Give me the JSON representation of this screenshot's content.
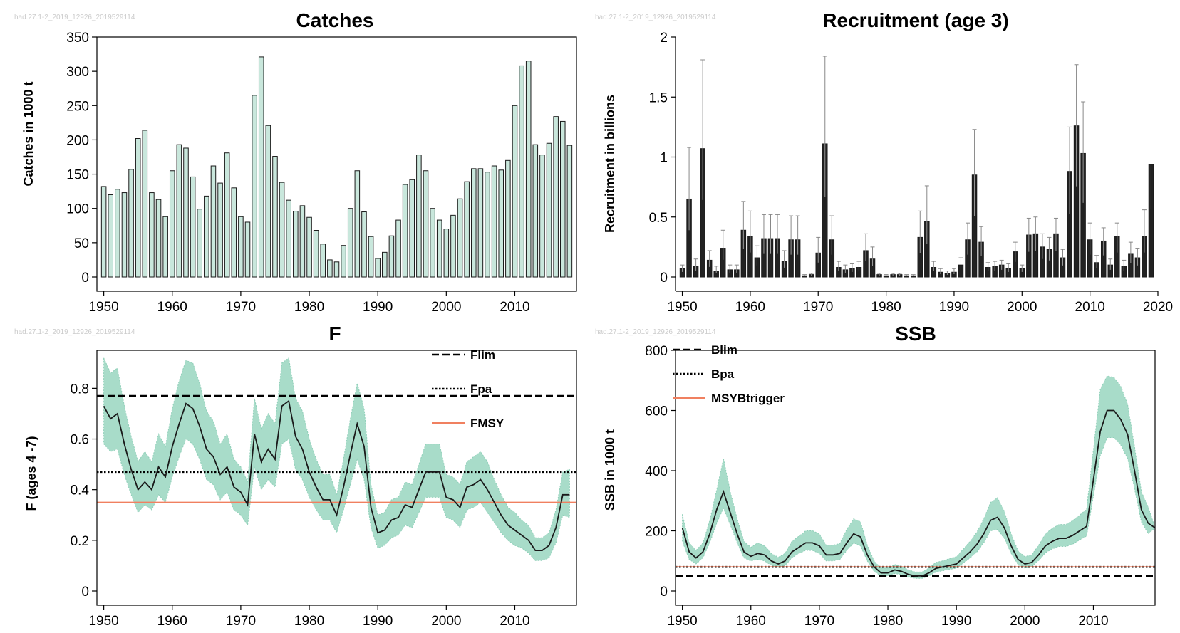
{
  "watermark": "had.27.1-2_2019_12926_2019529114",
  "chart_data": [
    {
      "type": "bar",
      "title": "Catches",
      "ylabel": "Catches in 1000 t",
      "xlabel": "",
      "xlim": [
        1949,
        2019
      ],
      "ylim": [
        0,
        350
      ],
      "xticks": [
        1950,
        1960,
        1970,
        1980,
        1990,
        2000,
        2010
      ],
      "yticks": [
        0,
        50,
        100,
        150,
        200,
        250,
        300,
        350
      ],
      "bar_color": "#c9e7dc",
      "x": [
        1950,
        1951,
        1952,
        1953,
        1954,
        1955,
        1956,
        1957,
        1958,
        1959,
        1960,
        1961,
        1962,
        1963,
        1964,
        1965,
        1966,
        1967,
        1968,
        1969,
        1970,
        1971,
        1972,
        1973,
        1974,
        1975,
        1976,
        1977,
        1978,
        1979,
        1980,
        1981,
        1982,
        1983,
        1984,
        1985,
        1986,
        1987,
        1988,
        1989,
        1990,
        1991,
        1992,
        1993,
        1994,
        1995,
        1996,
        1997,
        1998,
        1999,
        2000,
        2001,
        2002,
        2003,
        2004,
        2005,
        2006,
        2007,
        2008,
        2009,
        2010,
        2011,
        2012,
        2013,
        2014,
        2015,
        2016,
        2017,
        2018
      ],
      "values": [
        132,
        120,
        128,
        123,
        157,
        202,
        214,
        123,
        113,
        88,
        155,
        193,
        188,
        146,
        99,
        118,
        162,
        137,
        181,
        130,
        88,
        80,
        265,
        321,
        221,
        176,
        138,
        112,
        96,
        104,
        87,
        68,
        48,
        25,
        22,
        46,
        100,
        155,
        95,
        59,
        27,
        36,
        60,
        83,
        135,
        142,
        178,
        155,
        100,
        83,
        70,
        90,
        114,
        139,
        158,
        158,
        153,
        162,
        156,
        170,
        250,
        308,
        315,
        193,
        178,
        195,
        234,
        227,
        192
      ]
    },
    {
      "type": "bar",
      "title": "Recruitment (age 3)",
      "ylabel": "Recruitment in billions",
      "xlabel": "",
      "xlim": [
        1949,
        2020
      ],
      "ylim": [
        0,
        2
      ],
      "xticks": [
        1950,
        1960,
        1970,
        1980,
        1990,
        2000,
        2010,
        2020
      ],
      "yticks": [
        "0",
        "0.5",
        "1",
        "1.5",
        "2"
      ],
      "bar_color": "#222222",
      "x": [
        1950,
        1951,
        1952,
        1953,
        1954,
        1955,
        1956,
        1957,
        1958,
        1959,
        1960,
        1961,
        1962,
        1963,
        1964,
        1965,
        1966,
        1967,
        1968,
        1969,
        1970,
        1971,
        1972,
        1973,
        1974,
        1975,
        1976,
        1977,
        1978,
        1979,
        1980,
        1981,
        1982,
        1983,
        1984,
        1985,
        1986,
        1987,
        1988,
        1989,
        1990,
        1991,
        1992,
        1993,
        1994,
        1995,
        1996,
        1997,
        1998,
        1999,
        2000,
        2001,
        2002,
        2003,
        2004,
        2005,
        2006,
        2007,
        2008,
        2009,
        2010,
        2011,
        2012,
        2013,
        2014,
        2015,
        2016,
        2017,
        2018,
        2019
      ],
      "values": [
        0.07,
        0.65,
        0.09,
        1.07,
        0.14,
        0.05,
        0.24,
        0.06,
        0.06,
        0.39,
        0.34,
        0.16,
        0.32,
        0.32,
        0.32,
        0.13,
        0.31,
        0.31,
        0.01,
        0.02,
        0.2,
        1.11,
        0.31,
        0.08,
        0.06,
        0.07,
        0.08,
        0.22,
        0.15,
        0.02,
        0.01,
        0.02,
        0.02,
        0.01,
        0.01,
        0.33,
        0.46,
        0.08,
        0.04,
        0.03,
        0.04,
        0.1,
        0.31,
        0.85,
        0.29,
        0.08,
        0.09,
        0.1,
        0.07,
        0.21,
        0.07,
        0.35,
        0.36,
        0.25,
        0.23,
        0.36,
        0.16,
        0.88,
        1.26,
        1.03,
        0.31,
        0.12,
        0.3,
        0.1,
        0.34,
        0.09,
        0.19,
        0.16,
        0.34,
        0.94
      ],
      "upper": [
        0.1,
        1.08,
        0.15,
        1.81,
        0.22,
        0.09,
        0.39,
        0.1,
        0.1,
        0.63,
        0.55,
        0.26,
        0.52,
        0.52,
        0.52,
        0.22,
        0.51,
        0.51,
        0.02,
        0.03,
        0.33,
        1.84,
        0.51,
        0.13,
        0.1,
        0.11,
        0.13,
        0.36,
        0.25,
        0.03,
        0.02,
        0.03,
        0.03,
        0.02,
        0.02,
        0.55,
        0.76,
        0.13,
        0.07,
        0.05,
        0.07,
        0.16,
        0.45,
        1.23,
        0.42,
        0.12,
        0.13,
        0.14,
        0.11,
        0.29,
        0.1,
        0.49,
        0.5,
        0.36,
        0.33,
        0.49,
        0.23,
        1.25,
        1.77,
        1.46,
        0.45,
        0.18,
        0.41,
        0.15,
        0.45,
        0.14,
        0.29,
        0.24,
        0.56,
        0.94
      ]
    },
    {
      "type": "area",
      "title": "F",
      "ylabel": "F (ages 4 -7)",
      "xlabel": "",
      "xlim": [
        1949,
        2019
      ],
      "ylim": [
        0,
        0.95
      ],
      "xticks": [
        1950,
        1960,
        1970,
        1980,
        1990,
        2000,
        2010
      ],
      "yticks": [
        "0",
        "0.2",
        "0.4",
        "0.6",
        "0.8"
      ],
      "band_color": "#a8dcc9",
      "line_color": "#1a1a1a",
      "x": [
        1950,
        1951,
        1952,
        1953,
        1954,
        1955,
        1956,
        1957,
        1958,
        1959,
        1960,
        1961,
        1962,
        1963,
        1964,
        1965,
        1966,
        1967,
        1968,
        1969,
        1970,
        1971,
        1972,
        1973,
        1974,
        1975,
        1976,
        1977,
        1978,
        1979,
        1980,
        1981,
        1982,
        1983,
        1984,
        1985,
        1986,
        1987,
        1988,
        1989,
        1990,
        1991,
        1992,
        1993,
        1994,
        1995,
        1996,
        1997,
        1998,
        1999,
        2000,
        2001,
        2002,
        2003,
        2004,
        2005,
        2006,
        2007,
        2008,
        2009,
        2010,
        2011,
        2012,
        2013,
        2014,
        2015,
        2016,
        2017,
        2018
      ],
      "series": [
        {
          "values": [
            0.73,
            0.68,
            0.7,
            0.58,
            0.48,
            0.4,
            0.43,
            0.4,
            0.49,
            0.45,
            0.57,
            0.66,
            0.74,
            0.72,
            0.65,
            0.56,
            0.53,
            0.46,
            0.49,
            0.41,
            0.39,
            0.34,
            0.62,
            0.51,
            0.56,
            0.52,
            0.73,
            0.75,
            0.61,
            0.56,
            0.47,
            0.41,
            0.36,
            0.36,
            0.3,
            0.41,
            0.54,
            0.66,
            0.57,
            0.33,
            0.23,
            0.24,
            0.28,
            0.29,
            0.34,
            0.33,
            0.4,
            0.47,
            0.47,
            0.47,
            0.37,
            0.36,
            0.33,
            0.41,
            0.42,
            0.44,
            0.4,
            0.35,
            0.3,
            0.26,
            0.24,
            0.22,
            0.2,
            0.16,
            0.16,
            0.18,
            0.25,
            0.38,
            0.38
          ]
        },
        {
          "name": "Flim",
          "constant": 0.77,
          "style": "dashed"
        },
        {
          "name": "Fpa",
          "constant": 0.47,
          "style": "dotted"
        },
        {
          "name": "FMSY",
          "constant": 0.35,
          "style": "solid",
          "color": "#f08060"
        }
      ],
      "lower": [
        0.58,
        0.55,
        0.56,
        0.46,
        0.38,
        0.31,
        0.34,
        0.32,
        0.38,
        0.35,
        0.45,
        0.53,
        0.6,
        0.58,
        0.52,
        0.44,
        0.42,
        0.36,
        0.39,
        0.32,
        0.3,
        0.26,
        0.49,
        0.4,
        0.44,
        0.41,
        0.58,
        0.6,
        0.48,
        0.44,
        0.37,
        0.32,
        0.28,
        0.28,
        0.23,
        0.32,
        0.42,
        0.52,
        0.44,
        0.25,
        0.17,
        0.18,
        0.21,
        0.22,
        0.26,
        0.25,
        0.31,
        0.37,
        0.37,
        0.37,
        0.29,
        0.28,
        0.25,
        0.32,
        0.33,
        0.35,
        0.31,
        0.27,
        0.23,
        0.2,
        0.18,
        0.17,
        0.15,
        0.12,
        0.12,
        0.13,
        0.19,
        0.3,
        0.29
      ],
      "upper": [
        0.92,
        0.86,
        0.88,
        0.73,
        0.61,
        0.51,
        0.55,
        0.51,
        0.62,
        0.57,
        0.72,
        0.83,
        0.91,
        0.9,
        0.82,
        0.71,
        0.67,
        0.58,
        0.62,
        0.52,
        0.49,
        0.43,
        0.76,
        0.64,
        0.7,
        0.66,
        0.9,
        0.92,
        0.76,
        0.71,
        0.6,
        0.52,
        0.46,
        0.46,
        0.38,
        0.52,
        0.68,
        0.82,
        0.72,
        0.42,
        0.3,
        0.31,
        0.36,
        0.37,
        0.43,
        0.42,
        0.5,
        0.58,
        0.58,
        0.58,
        0.46,
        0.45,
        0.42,
        0.51,
        0.53,
        0.55,
        0.51,
        0.44,
        0.38,
        0.33,
        0.31,
        0.28,
        0.26,
        0.21,
        0.21,
        0.23,
        0.32,
        0.47,
        0.48
      ]
    },
    {
      "type": "area",
      "title": "SSB",
      "ylabel": "SSB in 1000 t",
      "xlabel": "",
      "xlim": [
        1949,
        2019
      ],
      "ylim": [
        0,
        800
      ],
      "xticks": [
        1950,
        1960,
        1970,
        1980,
        1990,
        2000,
        2010
      ],
      "yticks": [
        0,
        200,
        400,
        600,
        800
      ],
      "band_color": "#a8dcc9",
      "line_color": "#1a1a1a",
      "x": [
        1950,
        1951,
        1952,
        1953,
        1954,
        1955,
        1956,
        1957,
        1958,
        1959,
        1960,
        1961,
        1962,
        1963,
        1964,
        1965,
        1966,
        1967,
        1968,
        1969,
        1970,
        1971,
        1972,
        1973,
        1974,
        1975,
        1976,
        1977,
        1978,
        1979,
        1980,
        1981,
        1982,
        1983,
        1984,
        1985,
        1986,
        1987,
        1988,
        1989,
        1990,
        1991,
        1992,
        1993,
        1994,
        1995,
        1996,
        1997,
        1998,
        1999,
        2000,
        2001,
        2002,
        2003,
        2004,
        2005,
        2006,
        2007,
        2008,
        2009,
        2010,
        2011,
        2012,
        2013,
        2014,
        2015,
        2016,
        2017,
        2018,
        2019
      ],
      "series": [
        {
          "values": [
            210,
            130,
            110,
            130,
            190,
            270,
            330,
            260,
            190,
            130,
            115,
            125,
            120,
            100,
            90,
            100,
            130,
            145,
            160,
            160,
            150,
            120,
            120,
            125,
            160,
            190,
            180,
            120,
            80,
            60,
            60,
            70,
            65,
            55,
            50,
            50,
            60,
            75,
            80,
            85,
            90,
            110,
            130,
            155,
            190,
            235,
            245,
            210,
            150,
            105,
            90,
            95,
            120,
            150,
            165,
            175,
            175,
            185,
            200,
            215,
            370,
            530,
            600,
            600,
            570,
            520,
            400,
            270,
            225,
            210
          ]
        },
        {
          "name": "Blim",
          "constant": 50,
          "style": "dashed"
        },
        {
          "name": "Bpa",
          "constant": 80,
          "style": "dotted"
        },
        {
          "name": "MSYBtrigger",
          "constant": 80,
          "style": "solid",
          "color": "#f08060"
        }
      ],
      "lower": [
        165,
        105,
        90,
        110,
        160,
        225,
        275,
        220,
        160,
        110,
        100,
        105,
        100,
        85,
        78,
        85,
        110,
        125,
        135,
        135,
        125,
        100,
        100,
        105,
        135,
        160,
        150,
        100,
        65,
        50,
        50,
        58,
        55,
        46,
        42,
        42,
        50,
        63,
        67,
        72,
        76,
        93,
        110,
        130,
        160,
        200,
        205,
        175,
        125,
        88,
        76,
        80,
        101,
        127,
        140,
        148,
        148,
        156,
        170,
        183,
        315,
        450,
        510,
        510,
        485,
        440,
        340,
        230,
        190,
        210
      ],
      "upper": [
        255,
        160,
        135,
        160,
        235,
        335,
        440,
        330,
        240,
        165,
        145,
        160,
        150,
        125,
        112,
        125,
        165,
        182,
        200,
        200,
        190,
        152,
        152,
        158,
        205,
        240,
        230,
        152,
        100,
        76,
        76,
        88,
        82,
        70,
        63,
        63,
        76,
        95,
        100,
        108,
        114,
        139,
        165,
        196,
        240,
        295,
        310,
        265,
        190,
        133,
        114,
        120,
        152,
        190,
        208,
        221,
        221,
        234,
        252,
        272,
        470,
        670,
        715,
        710,
        680,
        620,
        480,
        330,
        280,
        210
      ]
    }
  ]
}
